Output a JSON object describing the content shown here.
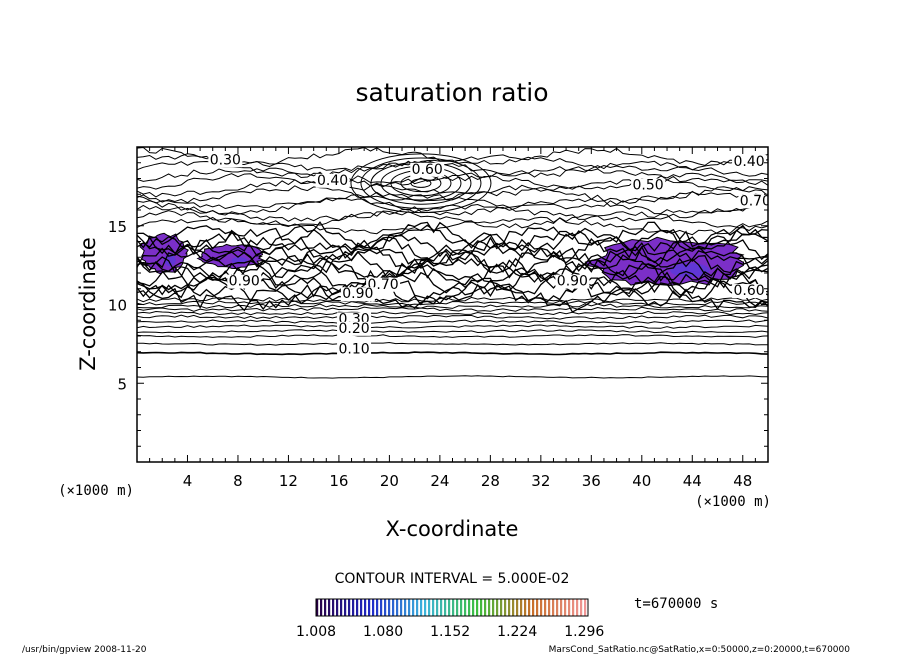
{
  "chart_data": {
    "type": "contour",
    "title": "saturation ratio",
    "xlabel": "X-coordinate",
    "ylabel": "Z-coordinate",
    "x_unit": "(×1000 m)",
    "y_unit": "(×1000 m)",
    "xlim": [
      0,
      50
    ],
    "ylim": [
      0,
      20
    ],
    "x_ticks": [
      4,
      8,
      12,
      16,
      20,
      24,
      28,
      32,
      36,
      40,
      44,
      48
    ],
    "y_ticks": [
      5,
      10,
      15
    ],
    "contour_interval_text": "CONTOUR INTERVAL = 5.000E-02",
    "time_text": "t=670000 s",
    "colorbar_labels": [
      "1.008",
      "1.080",
      "1.152",
      "1.224",
      "1.296"
    ],
    "colorbar_range": [
      1.008,
      1.3
    ],
    "contour_labels": [
      {
        "text": "0.30",
        "x": 7.0,
        "z": 18.9
      },
      {
        "text": "0.40",
        "x": 15.5,
        "z": 17.6
      },
      {
        "text": "0.60",
        "x": 23.0,
        "z": 18.3
      },
      {
        "text": "0.40",
        "x": 48.5,
        "z": 18.8
      },
      {
        "text": "0.50",
        "x": 40.5,
        "z": 17.3
      },
      {
        "text": "0.70",
        "x": 49.0,
        "z": 16.3
      },
      {
        "text": "0.90",
        "x": 8.5,
        "z": 11.2
      },
      {
        "text": "0.70",
        "x": 19.5,
        "z": 11.0
      },
      {
        "text": "0.90",
        "x": 34.5,
        "z": 11.2
      },
      {
        "text": "0.60",
        "x": 48.5,
        "z": 10.6
      },
      {
        "text": "0.90",
        "x": 17.5,
        "z": 10.4
      },
      {
        "text": "0.30",
        "x": 17.2,
        "z": 8.8
      },
      {
        "text": "0.20",
        "x": 17.2,
        "z": 8.2
      },
      {
        "text": "0.10",
        "x": 17.2,
        "z": 6.9
      }
    ],
    "shaded_regions": [
      {
        "x_range": [
          0.3,
          4.0
        ],
        "z_range": [
          12.0,
          14.5
        ],
        "value_range": [
          1.0,
          1.1
        ]
      },
      {
        "x_range": [
          5.0,
          10.0
        ],
        "z_range": [
          12.3,
          13.8
        ],
        "value_range": [
          1.0,
          1.05
        ]
      },
      {
        "x_range": [
          36.0,
          48.5
        ],
        "z_range": [
          11.2,
          14.2
        ],
        "value_range": [
          1.0,
          1.15
        ]
      }
    ]
  },
  "footer": {
    "left": "/usr/bin/gpview  2008-11-20",
    "right": "MarsCond_SatRatio.nc@SatRatio,x=0:50000,z=0:20000,t=670000"
  }
}
